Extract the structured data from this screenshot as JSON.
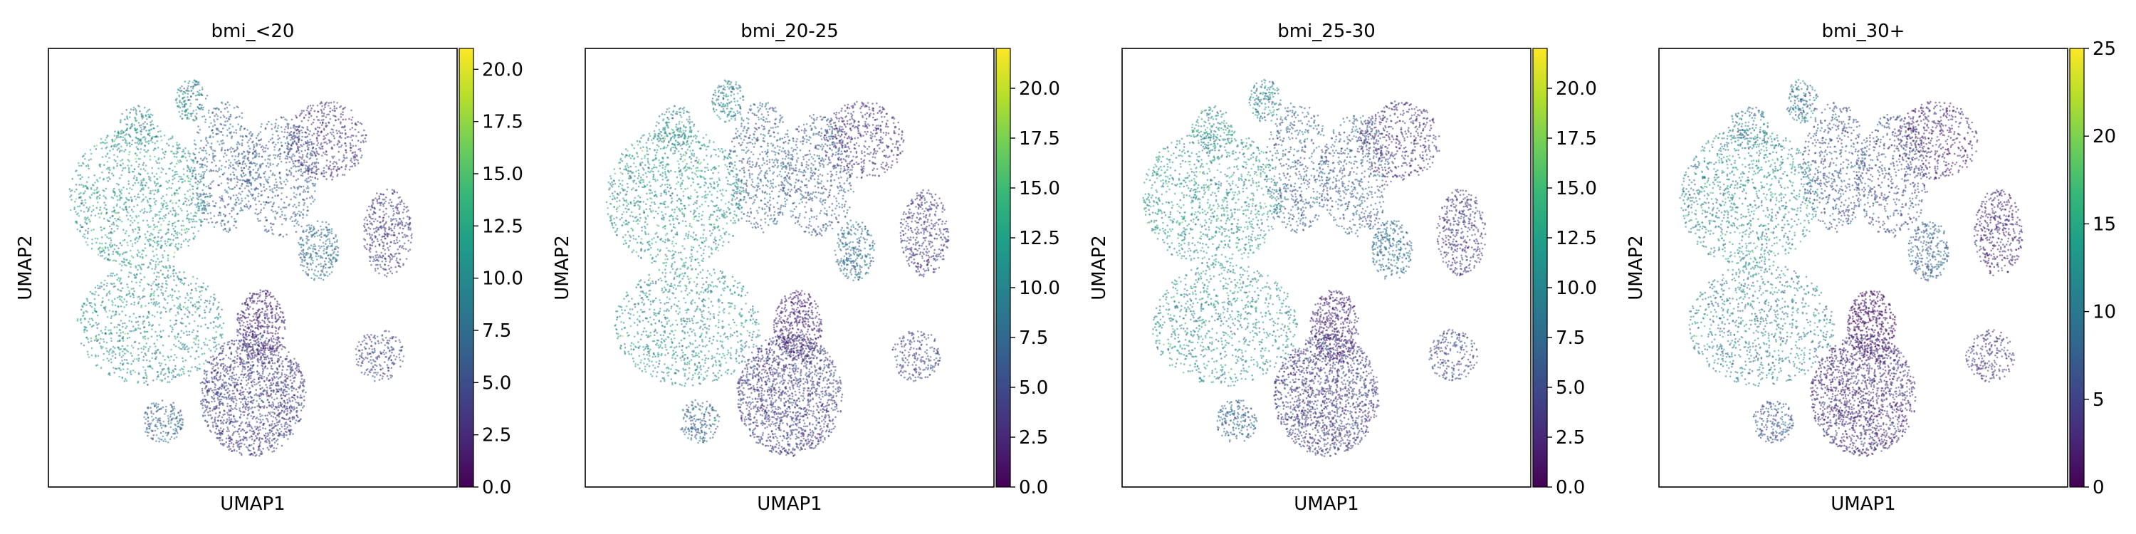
{
  "chart_data": [
    {
      "type": "scatter",
      "subtype": "umap-embedding",
      "title": "bmi_<20",
      "xlabel": "UMAP1",
      "ylabel": "UMAP2",
      "colormap": "viridis",
      "colorbar": {
        "vmin": 0,
        "vmax": 21,
        "ticks": [
          "0.0",
          "2.5",
          "5.0",
          "7.5",
          "10.0",
          "12.5",
          "15.0",
          "17.5",
          "20.0"
        ],
        "tick_values": [
          0,
          2.5,
          5,
          7.5,
          10,
          12.5,
          15,
          17.5,
          20
        ]
      },
      "axes": {
        "ticks_shown": false,
        "grid": false
      }
    },
    {
      "type": "scatter",
      "subtype": "umap-embedding",
      "title": "bmi_20-25",
      "xlabel": "UMAP1",
      "ylabel": "UMAP2",
      "colormap": "viridis",
      "colorbar": {
        "vmin": 0,
        "vmax": 22,
        "ticks": [
          "0.0",
          "2.5",
          "5.0",
          "7.5",
          "10.0",
          "12.5",
          "15.0",
          "17.5",
          "20.0"
        ],
        "tick_values": [
          0,
          2.5,
          5,
          7.5,
          10,
          12.5,
          15,
          17.5,
          20
        ]
      },
      "axes": {
        "ticks_shown": false,
        "grid": false
      }
    },
    {
      "type": "scatter",
      "subtype": "umap-embedding",
      "title": "bmi_25-30",
      "xlabel": "UMAP1",
      "ylabel": "UMAP2",
      "colormap": "viridis",
      "colorbar": {
        "vmin": 0,
        "vmax": 22,
        "ticks": [
          "0.0",
          "2.5",
          "5.0",
          "7.5",
          "10.0",
          "12.5",
          "15.0",
          "17.5",
          "20.0"
        ],
        "tick_values": [
          0,
          2.5,
          5,
          7.5,
          10,
          12.5,
          15,
          17.5,
          20
        ]
      },
      "axes": {
        "ticks_shown": false,
        "grid": false
      }
    },
    {
      "type": "scatter",
      "subtype": "umap-embedding",
      "title": "bmi_30+",
      "xlabel": "UMAP1",
      "ylabel": "UMAP2",
      "colormap": "viridis",
      "colorbar": {
        "vmin": 0,
        "vmax": 25,
        "ticks": [
          "0",
          "5",
          "10",
          "15",
          "20",
          "25"
        ],
        "tick_values": [
          0,
          5,
          10,
          15,
          20,
          25
        ]
      },
      "axes": {
        "ticks_shown": false,
        "grid": false
      }
    }
  ],
  "viridis_stops": [
    "#440154",
    "#482878",
    "#3e4989",
    "#31688e",
    "#26828e",
    "#1f9e89",
    "#35b779",
    "#6ece58",
    "#b5de2b",
    "#fde725"
  ]
}
